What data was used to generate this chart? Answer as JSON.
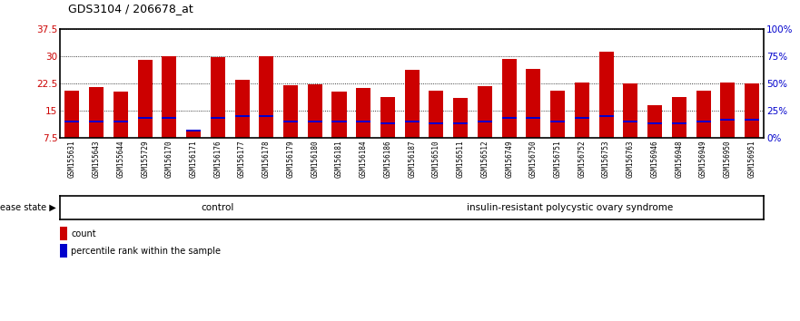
{
  "title": "GDS3104 / 206678_at",
  "samples": [
    "GSM155631",
    "GSM155643",
    "GSM155644",
    "GSM155729",
    "GSM156170",
    "GSM156171",
    "GSM156176",
    "GSM156177",
    "GSM156178",
    "GSM156179",
    "GSM156180",
    "GSM156181",
    "GSM156184",
    "GSM156186",
    "GSM156187",
    "GSM156510",
    "GSM156511",
    "GSM156512",
    "GSM156749",
    "GSM156750",
    "GSM156751",
    "GSM156752",
    "GSM156753",
    "GSM156763",
    "GSM156946",
    "GSM156948",
    "GSM156949",
    "GSM156950",
    "GSM156951"
  ],
  "counts": [
    20.5,
    21.5,
    20.2,
    29.0,
    30.1,
    9.8,
    29.8,
    23.5,
    29.9,
    22.0,
    22.3,
    20.3,
    21.3,
    18.8,
    26.2,
    20.5,
    18.5,
    21.8,
    29.2,
    26.5,
    20.5,
    22.7,
    31.2,
    22.5,
    16.5,
    18.8,
    20.5,
    22.8,
    22.6
  ],
  "percentile_values": [
    12.0,
    12.0,
    12.0,
    13.0,
    13.0,
    9.5,
    13.0,
    13.5,
    13.5,
    12.0,
    12.0,
    12.0,
    12.0,
    11.5,
    12.0,
    11.5,
    11.5,
    12.0,
    13.0,
    13.0,
    12.0,
    13.0,
    13.5,
    12.0,
    11.5,
    11.5,
    12.0,
    12.5,
    12.5
  ],
  "control_count": 13,
  "disease_state_control": "control",
  "disease_state_disease": "insulin-resistant polycystic ovary syndrome",
  "ymin": 7.5,
  "ymax": 37.5,
  "yticks": [
    7.5,
    15.0,
    22.5,
    30.0,
    37.5
  ],
  "ytick_labels": [
    "7.5",
    "15",
    "22.5",
    "30",
    "37.5"
  ],
  "y2ticks": [
    0,
    25,
    50,
    75,
    100
  ],
  "y2tick_labels": [
    "0%",
    "25%",
    "50%",
    "75%",
    "100%"
  ],
  "bar_color_red": "#cc0000",
  "bar_color_blue": "#0000cc",
  "color_control_bg": "#ccffcc",
  "color_disease_bg": "#44cc44",
  "left_axis_color": "#cc0000",
  "right_axis_color": "#0000cc",
  "xticklabel_bg": "#d0d0d0",
  "plot_bg": "#ffffff"
}
